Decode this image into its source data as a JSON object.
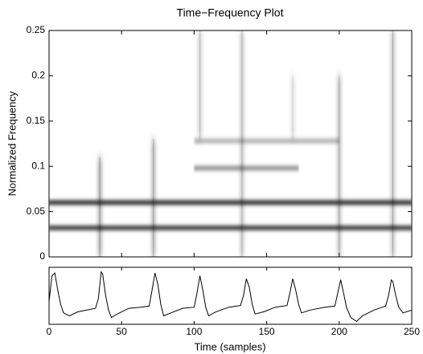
{
  "chart_data": [
    {
      "type": "heatmap",
      "title": "Time−Frequency Plot",
      "ylabel": "Normalized Frequency",
      "xlim": [
        0,
        250
      ],
      "ylim": [
        0,
        0.25
      ],
      "yticks": [
        0,
        0.05,
        0.1,
        0.15,
        0.2,
        0.25
      ],
      "horizontal_ridges": [
        {
          "y": 0.032,
          "x": [
            0,
            250
          ],
          "strength": 0.9
        },
        {
          "y": 0.06,
          "x": [
            0,
            250
          ],
          "strength": 0.95
        },
        {
          "y": 0.098,
          "x": [
            100,
            172
          ],
          "strength": 0.5
        },
        {
          "y": 0.128,
          "x": [
            100,
            200
          ],
          "strength": 0.35
        }
      ],
      "vertical_ridges": [
        {
          "x": 35,
          "y": [
            0,
            0.11
          ],
          "strength": 0.5
        },
        {
          "x": 72,
          "y": [
            0,
            0.13
          ],
          "strength": 0.45
        },
        {
          "x": 104,
          "y": [
            0.13,
            0.25
          ],
          "strength": 0.3
        },
        {
          "x": 133,
          "y": [
            0,
            0.25
          ],
          "strength": 0.35
        },
        {
          "x": 168,
          "y": [
            0.13,
            0.2
          ],
          "strength": 0.2
        },
        {
          "x": 200,
          "y": [
            0,
            0.2
          ],
          "strength": 0.4
        },
        {
          "x": 237,
          "y": [
            0,
            0.25
          ],
          "strength": 0.4
        }
      ]
    },
    {
      "type": "line",
      "xlabel": "Time (samples)",
      "color": "#000000",
      "xlim": [
        0,
        250
      ],
      "xticks": [
        0,
        50,
        100,
        150,
        200,
        250
      ],
      "ylim": [
        0,
        1
      ],
      "x": [
        0,
        2,
        4,
        6,
        8,
        10,
        14,
        20,
        26,
        32,
        34,
        36,
        37,
        39,
        41,
        43,
        47,
        55,
        63,
        69,
        71,
        73,
        75,
        77,
        79,
        84,
        92,
        100,
        102,
        104,
        106,
        108,
        110,
        115,
        124,
        132,
        134,
        136,
        138,
        140,
        142,
        148,
        156,
        164,
        166,
        168,
        170,
        172,
        174,
        180,
        190,
        197,
        199,
        201,
        203,
        205,
        208,
        212,
        216,
        224,
        232,
        234,
        236,
        237,
        239,
        241,
        244,
        250
      ],
      "values": [
        0.4,
        0.85,
        0.9,
        0.6,
        0.35,
        0.2,
        0.15,
        0.22,
        0.25,
        0.28,
        0.45,
        0.92,
        0.88,
        0.5,
        0.25,
        0.12,
        0.18,
        0.28,
        0.3,
        0.32,
        0.6,
        0.9,
        0.7,
        0.35,
        0.15,
        0.2,
        0.28,
        0.3,
        0.55,
        0.85,
        0.6,
        0.3,
        0.15,
        0.22,
        0.3,
        0.33,
        0.5,
        0.8,
        0.65,
        0.35,
        0.18,
        0.22,
        0.3,
        0.33,
        0.55,
        0.8,
        0.6,
        0.35,
        0.2,
        0.25,
        0.3,
        0.32,
        0.55,
        0.78,
        0.55,
        0.3,
        0.12,
        0.05,
        0.15,
        0.25,
        0.32,
        0.5,
        0.78,
        0.75,
        0.5,
        0.3,
        0.2,
        0.25
      ]
    }
  ]
}
